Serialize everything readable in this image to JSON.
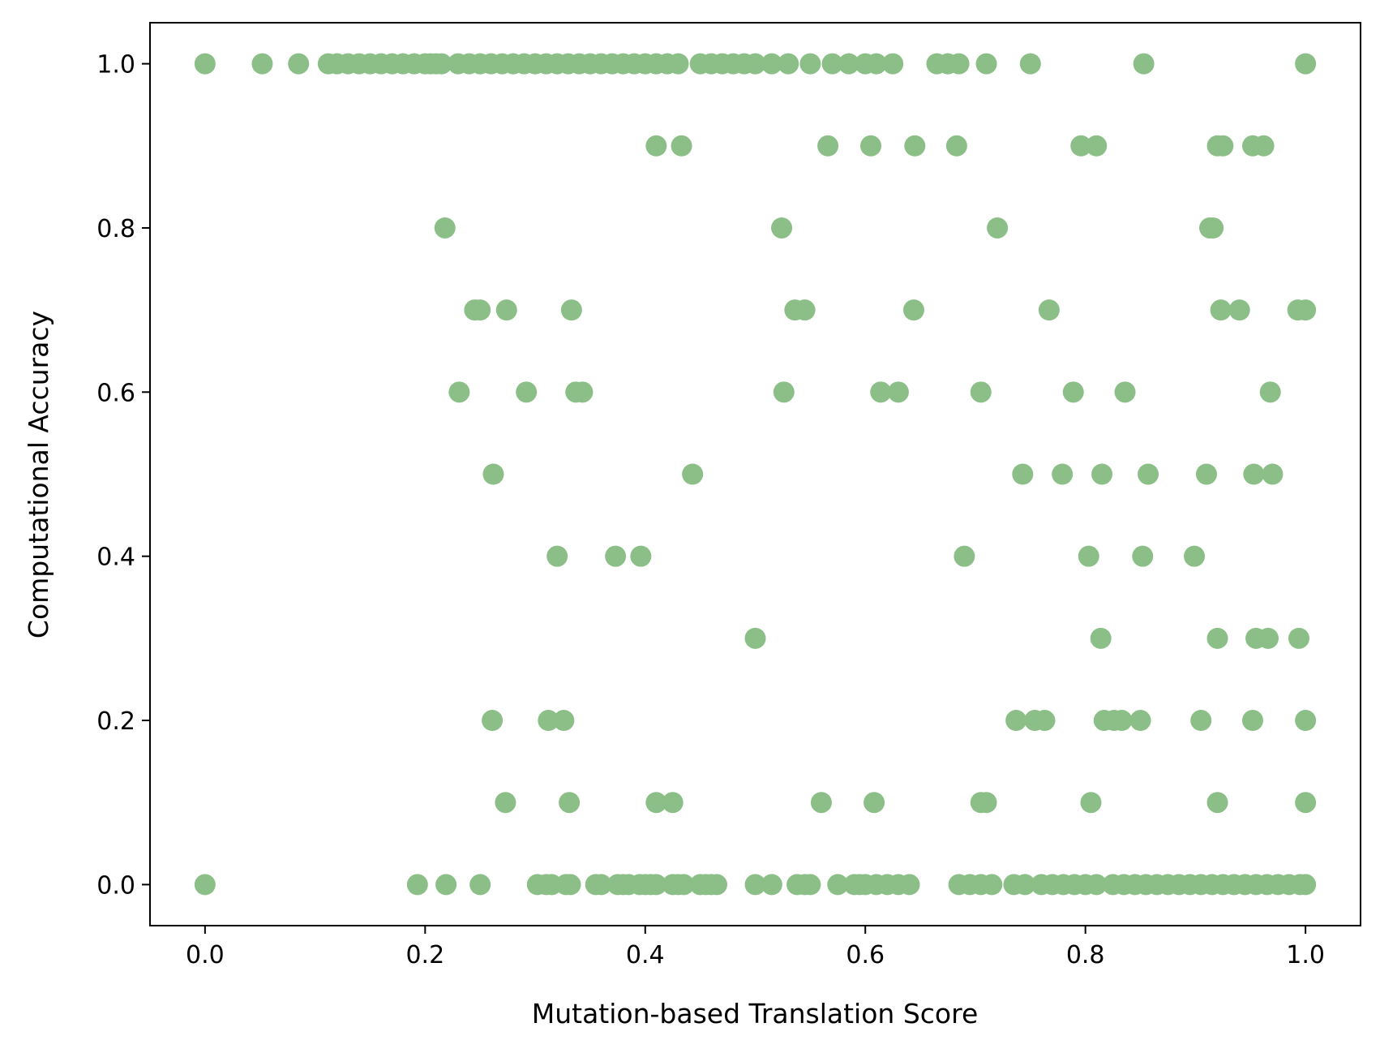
{
  "chart_data": {
    "type": "scatter",
    "title": "",
    "xlabel": "Mutation-based Translation Score",
    "ylabel": "Computational Accuracy",
    "xlim": [
      -0.05,
      1.05
    ],
    "ylim": [
      -0.05,
      1.05
    ],
    "xticks": [
      0.0,
      0.2,
      0.4,
      0.6,
      0.8,
      1.0
    ],
    "yticks": [
      0.0,
      0.2,
      0.4,
      0.6,
      0.8,
      1.0
    ],
    "xtick_labels": [
      "0.0",
      "0.2",
      "0.4",
      "0.6",
      "0.8",
      "1.0"
    ],
    "ytick_labels": [
      "0.0",
      "0.2",
      "0.4",
      "0.6",
      "0.8",
      "1.0"
    ],
    "grid": false,
    "legend": "none",
    "marker_color": "#8bbf87",
    "series": [
      {
        "points": [
          [
            0.0,
            1.0
          ],
          [
            0.052,
            1.0
          ],
          [
            0.085,
            1.0
          ],
          [
            0.112,
            1.0
          ],
          [
            0.12,
            1.0
          ],
          [
            0.13,
            1.0
          ],
          [
            0.14,
            1.0
          ],
          [
            0.15,
            1.0
          ],
          [
            0.16,
            1.0
          ],
          [
            0.17,
            1.0
          ],
          [
            0.18,
            1.0
          ],
          [
            0.19,
            1.0
          ],
          [
            0.2,
            1.0
          ],
          [
            0.205,
            1.0
          ],
          [
            0.21,
            1.0
          ],
          [
            0.215,
            1.0
          ],
          [
            0.23,
            1.0
          ],
          [
            0.24,
            1.0
          ],
          [
            0.25,
            1.0
          ],
          [
            0.26,
            1.0
          ],
          [
            0.27,
            1.0
          ],
          [
            0.28,
            1.0
          ],
          [
            0.29,
            1.0
          ],
          [
            0.3,
            1.0
          ],
          [
            0.31,
            1.0
          ],
          [
            0.32,
            1.0
          ],
          [
            0.33,
            1.0
          ],
          [
            0.34,
            1.0
          ],
          [
            0.35,
            1.0
          ],
          [
            0.36,
            1.0
          ],
          [
            0.37,
            1.0
          ],
          [
            0.38,
            1.0
          ],
          [
            0.39,
            1.0
          ],
          [
            0.4,
            1.0
          ],
          [
            0.41,
            1.0
          ],
          [
            0.42,
            1.0
          ],
          [
            0.43,
            1.0
          ],
          [
            0.45,
            1.0
          ],
          [
            0.46,
            1.0
          ],
          [
            0.47,
            1.0
          ],
          [
            0.48,
            1.0
          ],
          [
            0.49,
            1.0
          ],
          [
            0.5,
            1.0
          ],
          [
            0.515,
            1.0
          ],
          [
            0.53,
            1.0
          ],
          [
            0.55,
            1.0
          ],
          [
            0.57,
            1.0
          ],
          [
            0.585,
            1.0
          ],
          [
            0.6,
            1.0
          ],
          [
            0.61,
            1.0
          ],
          [
            0.625,
            1.0
          ],
          [
            0.665,
            1.0
          ],
          [
            0.675,
            1.0
          ],
          [
            0.685,
            1.0
          ],
          [
            0.71,
            1.0
          ],
          [
            0.75,
            1.0
          ],
          [
            0.853,
            1.0
          ],
          [
            1.0,
            1.0
          ],
          [
            0.41,
            0.9
          ],
          [
            0.433,
            0.9
          ],
          [
            0.566,
            0.9
          ],
          [
            0.605,
            0.9
          ],
          [
            0.645,
            0.9
          ],
          [
            0.683,
            0.9
          ],
          [
            0.796,
            0.9
          ],
          [
            0.81,
            0.9
          ],
          [
            0.92,
            0.9
          ],
          [
            0.925,
            0.9
          ],
          [
            0.952,
            0.9
          ],
          [
            0.962,
            0.9
          ],
          [
            0.218,
            0.8
          ],
          [
            0.524,
            0.8
          ],
          [
            0.72,
            0.8
          ],
          [
            0.913,
            0.8
          ],
          [
            0.916,
            0.8
          ],
          [
            0.245,
            0.7
          ],
          [
            0.25,
            0.7
          ],
          [
            0.274,
            0.7
          ],
          [
            0.333,
            0.7
          ],
          [
            0.536,
            0.7
          ],
          [
            0.545,
            0.7
          ],
          [
            0.644,
            0.7
          ],
          [
            0.767,
            0.7
          ],
          [
            0.923,
            0.7
          ],
          [
            0.94,
            0.7
          ],
          [
            0.993,
            0.7
          ],
          [
            1.0,
            0.7
          ],
          [
            0.231,
            0.6
          ],
          [
            0.292,
            0.6
          ],
          [
            0.337,
            0.6
          ],
          [
            0.343,
            0.6
          ],
          [
            0.526,
            0.6
          ],
          [
            0.614,
            0.6
          ],
          [
            0.63,
            0.6
          ],
          [
            0.705,
            0.6
          ],
          [
            0.789,
            0.6
          ],
          [
            0.836,
            0.6
          ],
          [
            0.968,
            0.6
          ],
          [
            0.262,
            0.5
          ],
          [
            0.443,
            0.5
          ],
          [
            0.743,
            0.5
          ],
          [
            0.779,
            0.5
          ],
          [
            0.815,
            0.5
          ],
          [
            0.857,
            0.5
          ],
          [
            0.91,
            0.5
          ],
          [
            0.953,
            0.5
          ],
          [
            0.97,
            0.5
          ],
          [
            0.32,
            0.4
          ],
          [
            0.373,
            0.4
          ],
          [
            0.396,
            0.4
          ],
          [
            0.69,
            0.4
          ],
          [
            0.803,
            0.4
          ],
          [
            0.852,
            0.4
          ],
          [
            0.899,
            0.4
          ],
          [
            0.5,
            0.3
          ],
          [
            0.814,
            0.3
          ],
          [
            0.92,
            0.3
          ],
          [
            0.955,
            0.3
          ],
          [
            0.966,
            0.3
          ],
          [
            0.994,
            0.3
          ],
          [
            0.261,
            0.2
          ],
          [
            0.312,
            0.2
          ],
          [
            0.326,
            0.2
          ],
          [
            0.737,
            0.2
          ],
          [
            0.754,
            0.2
          ],
          [
            0.763,
            0.2
          ],
          [
            0.817,
            0.2
          ],
          [
            0.826,
            0.2
          ],
          [
            0.833,
            0.2
          ],
          [
            0.85,
            0.2
          ],
          [
            0.905,
            0.2
          ],
          [
            0.952,
            0.2
          ],
          [
            1.0,
            0.2
          ],
          [
            0.273,
            0.1
          ],
          [
            0.331,
            0.1
          ],
          [
            0.41,
            0.1
          ],
          [
            0.425,
            0.1
          ],
          [
            0.56,
            0.1
          ],
          [
            0.608,
            0.1
          ],
          [
            0.705,
            0.1
          ],
          [
            0.71,
            0.1
          ],
          [
            0.805,
            0.1
          ],
          [
            0.92,
            0.1
          ],
          [
            1.0,
            0.1
          ],
          [
            0.0,
            0.0
          ],
          [
            0.193,
            0.0
          ],
          [
            0.219,
            0.0
          ],
          [
            0.25,
            0.0
          ],
          [
            0.302,
            0.0
          ],
          [
            0.31,
            0.0
          ],
          [
            0.315,
            0.0
          ],
          [
            0.328,
            0.0
          ],
          [
            0.332,
            0.0
          ],
          [
            0.355,
            0.0
          ],
          [
            0.36,
            0.0
          ],
          [
            0.375,
            0.0
          ],
          [
            0.38,
            0.0
          ],
          [
            0.385,
            0.0
          ],
          [
            0.395,
            0.0
          ],
          [
            0.4,
            0.0
          ],
          [
            0.405,
            0.0
          ],
          [
            0.41,
            0.0
          ],
          [
            0.425,
            0.0
          ],
          [
            0.43,
            0.0
          ],
          [
            0.435,
            0.0
          ],
          [
            0.45,
            0.0
          ],
          [
            0.455,
            0.0
          ],
          [
            0.46,
            0.0
          ],
          [
            0.465,
            0.0
          ],
          [
            0.5,
            0.0
          ],
          [
            0.515,
            0.0
          ],
          [
            0.538,
            0.0
          ],
          [
            0.545,
            0.0
          ],
          [
            0.55,
            0.0
          ],
          [
            0.575,
            0.0
          ],
          [
            0.59,
            0.0
          ],
          [
            0.595,
            0.0
          ],
          [
            0.6,
            0.0
          ],
          [
            0.61,
            0.0
          ],
          [
            0.62,
            0.0
          ],
          [
            0.63,
            0.0
          ],
          [
            0.64,
            0.0
          ],
          [
            0.685,
            0.0
          ],
          [
            0.695,
            0.0
          ],
          [
            0.705,
            0.0
          ],
          [
            0.715,
            0.0
          ],
          [
            0.735,
            0.0
          ],
          [
            0.745,
            0.0
          ],
          [
            0.76,
            0.0
          ],
          [
            0.77,
            0.0
          ],
          [
            0.78,
            0.0
          ],
          [
            0.79,
            0.0
          ],
          [
            0.8,
            0.0
          ],
          [
            0.81,
            0.0
          ],
          [
            0.825,
            0.0
          ],
          [
            0.835,
            0.0
          ],
          [
            0.845,
            0.0
          ],
          [
            0.855,
            0.0
          ],
          [
            0.865,
            0.0
          ],
          [
            0.875,
            0.0
          ],
          [
            0.885,
            0.0
          ],
          [
            0.895,
            0.0
          ],
          [
            0.905,
            0.0
          ],
          [
            0.915,
            0.0
          ],
          [
            0.925,
            0.0
          ],
          [
            0.935,
            0.0
          ],
          [
            0.945,
            0.0
          ],
          [
            0.955,
            0.0
          ],
          [
            0.965,
            0.0
          ],
          [
            0.975,
            0.0
          ],
          [
            0.985,
            0.0
          ],
          [
            0.995,
            0.0
          ],
          [
            1.0,
            0.0
          ]
        ]
      }
    ]
  }
}
